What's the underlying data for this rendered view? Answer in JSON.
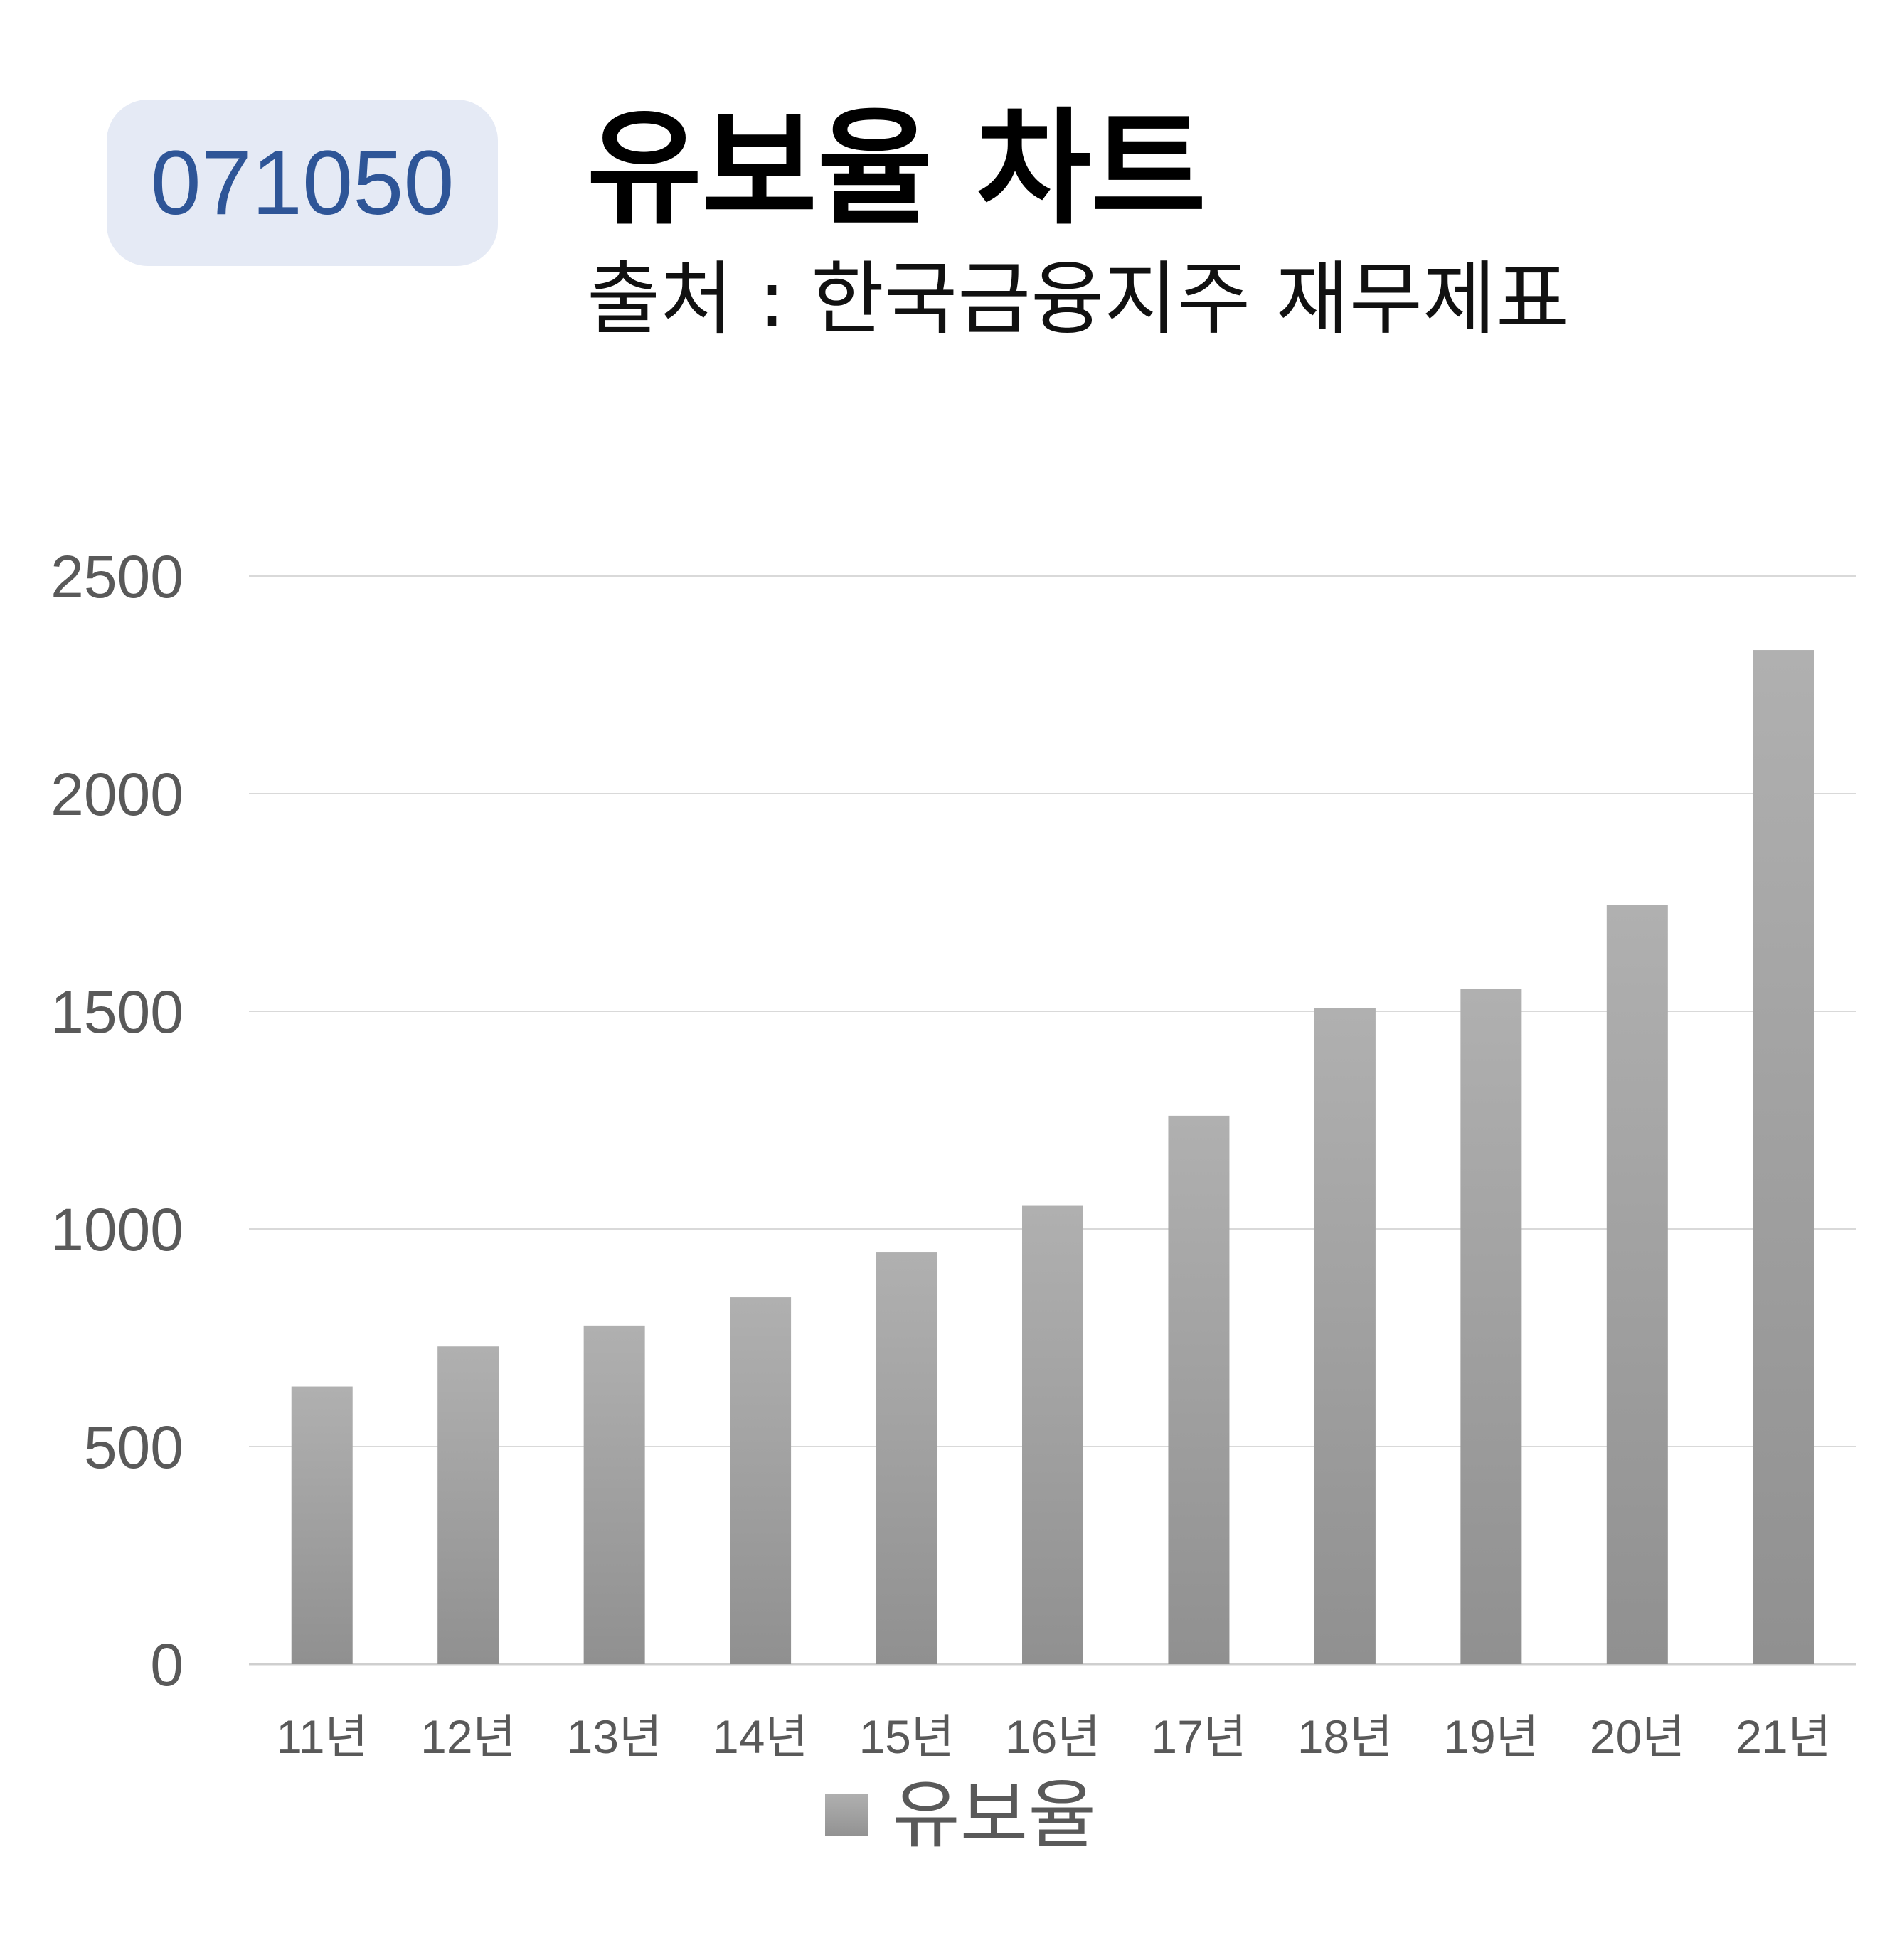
{
  "badge": {
    "code": "071050"
  },
  "header": {
    "title": "유보율 차트",
    "subtitle": "출처 : 한국금융지주 재무제표"
  },
  "colors": {
    "bar_top": "#b0b0b0",
    "bar_bottom": "#909090",
    "grid": "#d9d9d9",
    "badge_bg": "#e5eaf5",
    "badge_text": "#2e5597"
  },
  "chart_data": {
    "type": "bar",
    "categories": [
      "11년",
      "12년",
      "13년",
      "14년",
      "15년",
      "16년",
      "17년",
      "18년",
      "19년",
      "20년",
      "21년"
    ],
    "series": [
      {
        "name": "유보율",
        "values": [
          638,
          730,
          778,
          843,
          946,
          1053,
          1260,
          1508,
          1552,
          1745,
          2330
        ]
      }
    ],
    "ylim": [
      0,
      2500
    ],
    "yticks": [
      0,
      500,
      1000,
      1500,
      2000,
      2500
    ],
    "grid": true,
    "legend": "bottom"
  }
}
